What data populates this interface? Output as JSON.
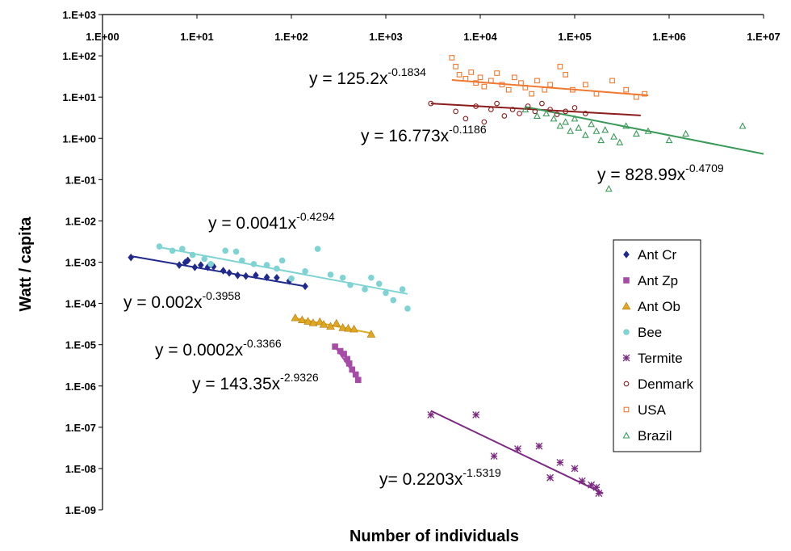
{
  "chart_data": {
    "type": "scatter",
    "title": "",
    "xlabel": "Number of individuals",
    "ylabel": "Watt / capita",
    "xscale": "log",
    "yscale": "log",
    "xlim": [
      1,
      10000000
    ],
    "ylim": [
      1e-09,
      1000
    ],
    "x_tick_labels": [
      "1.E+00",
      "1.E+01",
      "1.E+02",
      "1.E+03",
      "1.E+04",
      "1.E+05",
      "1.E+06",
      "1.E+07"
    ],
    "y_tick_labels": [
      "1.E+03",
      "1.E+02",
      "1.E+01",
      "1.E+00",
      "1.E-01",
      "1.E-02",
      "1.E-03",
      "1.E-04",
      "1.E-05",
      "1.E-06",
      "1.E-07",
      "1.E-08",
      "1.E-09"
    ],
    "x_axis_position": "top",
    "grid": false,
    "legend_position": "right",
    "series": [
      {
        "name": "Ant Cr",
        "marker": "diamond",
        "color": "#1f2a8c",
        "points": [
          [
            2,
            0.0013
          ],
          [
            6.5,
            0.00085
          ],
          [
            7.5,
            0.00098
          ],
          [
            8,
            0.0011
          ],
          [
            9.5,
            0.00075
          ],
          [
            11,
            0.00085
          ],
          [
            13,
            0.00075
          ],
          [
            15,
            0.00078
          ],
          [
            19,
            0.00062
          ],
          [
            22,
            0.00055
          ],
          [
            27,
            0.00048
          ],
          [
            33,
            0.00046
          ],
          [
            42,
            0.00048
          ],
          [
            55,
            0.00043
          ],
          [
            70,
            0.00042
          ],
          [
            95,
            0.00035
          ],
          [
            140,
            0.00026
          ]
        ],
        "fit": {
          "equation": "y = 0.002x",
          "exponent": "-0.3958",
          "x_range": [
            2,
            140
          ]
        }
      },
      {
        "name": "Ant Zp",
        "marker": "square",
        "color": "#a64ca6",
        "points": [
          [
            290,
            9e-06
          ],
          [
            330,
            7e-06
          ],
          [
            360,
            6e-06
          ],
          [
            390,
            4.5e-06
          ],
          [
            410,
            3.5e-06
          ],
          [
            440,
            2.5e-06
          ],
          [
            480,
            1.9e-06
          ],
          [
            510,
            1.4e-06
          ]
        ],
        "fit": {
          "equation": "y = 143.35x",
          "exponent": "-2.9326",
          "x_range": [
            290,
            510
          ]
        }
      },
      {
        "name": "Ant Ob",
        "marker": "triangle",
        "color": "#e0a820",
        "points": [
          [
            110,
            4.5e-05
          ],
          [
            130,
            4e-05
          ],
          [
            150,
            3.7e-05
          ],
          [
            170,
            3.4e-05
          ],
          [
            200,
            3.6e-05
          ],
          [
            220,
            3.1e-05
          ],
          [
            260,
            2.8e-05
          ],
          [
            300,
            3.3e-05
          ],
          [
            350,
            2.6e-05
          ],
          [
            400,
            2.5e-05
          ],
          [
            460,
            2.4e-05
          ],
          [
            700,
            1.8e-05
          ]
        ],
        "fit": {
          "equation": "y = 0.0002x",
          "exponent": "-0.3366",
          "x_range": [
            110,
            700
          ]
        }
      },
      {
        "name": "Bee",
        "marker": "circle",
        "color": "#7fd3d3",
        "points": [
          [
            4,
            0.0024
          ],
          [
            5.5,
            0.0019
          ],
          [
            7,
            0.0021
          ],
          [
            9,
            0.0015
          ],
          [
            12,
            0.0012
          ],
          [
            14,
            0.0009
          ],
          [
            20,
            0.0019
          ],
          [
            26,
            0.0018
          ],
          [
            30,
            0.0011
          ],
          [
            40,
            0.0009
          ],
          [
            55,
            0.00085
          ],
          [
            70,
            0.0007
          ],
          [
            80,
            0.0011
          ],
          [
            100,
            0.0004
          ],
          [
            140,
            0.0006
          ],
          [
            190,
            0.0021
          ],
          [
            260,
            0.0005
          ],
          [
            350,
            0.00042
          ],
          [
            420,
            0.00028
          ],
          [
            600,
            0.00022
          ],
          [
            700,
            0.00042
          ],
          [
            850,
            0.0003
          ],
          [
            1000,
            0.00018
          ],
          [
            1200,
            0.00012
          ],
          [
            1500,
            0.00022
          ],
          [
            1700,
            7.5e-05
          ]
        ],
        "fit": {
          "equation": "y = 0.0041x",
          "exponent": "-0.4294",
          "x_range": [
            4,
            1700
          ]
        }
      },
      {
        "name": "Termite",
        "marker": "star",
        "color": "#7a2880",
        "points": [
          [
            3000,
            2e-07
          ],
          [
            9000,
            2e-07
          ],
          [
            14000,
            2e-08
          ],
          [
            25000,
            3e-08
          ],
          [
            42000,
            3.5e-08
          ],
          [
            55000,
            6e-09
          ],
          [
            70000,
            1.4e-08
          ],
          [
            100000,
            1e-08
          ],
          [
            120000,
            5e-09
          ],
          [
            150000,
            4e-09
          ],
          [
            170000,
            3.5e-09
          ],
          [
            180000,
            2.5e-09
          ]
        ],
        "fit": {
          "equation": "y= 0.2203x",
          "exponent": "-1.5319",
          "x_range": [
            3000,
            200000
          ]
        }
      },
      {
        "name": "Denmark",
        "marker": "circle-open",
        "color": "#8b1c1c",
        "points": [
          [
            3000,
            7
          ],
          [
            5500,
            4.5
          ],
          [
            7000,
            3
          ],
          [
            9000,
            6
          ],
          [
            11000,
            2.5
          ],
          [
            13000,
            5
          ],
          [
            15000,
            7
          ],
          [
            18000,
            3.5
          ],
          [
            22000,
            5
          ],
          [
            26000,
            4
          ],
          [
            32000,
            6
          ],
          [
            38000,
            4.5
          ],
          [
            45000,
            7
          ],
          [
            55000,
            5
          ],
          [
            65000,
            3.8
          ],
          [
            80000,
            4.5
          ],
          [
            100000,
            5.5
          ],
          [
            130000,
            4
          ]
        ],
        "fit": {
          "equation": "y = 16.773x",
          "exponent": "-0.1186",
          "x_range": [
            3000,
            500000
          ]
        }
      },
      {
        "name": "USA",
        "marker": "square-open",
        "color": "#f07830",
        "points": [
          [
            5000,
            90
          ],
          [
            5500,
            55
          ],
          [
            6000,
            35
          ],
          [
            7000,
            28
          ],
          [
            8000,
            40
          ],
          [
            9000,
            22
          ],
          [
            10000,
            30
          ],
          [
            11000,
            18
          ],
          [
            13000,
            25
          ],
          [
            15000,
            38
          ],
          [
            17000,
            20
          ],
          [
            20000,
            15
          ],
          [
            23000,
            30
          ],
          [
            27000,
            22
          ],
          [
            30000,
            17
          ],
          [
            35000,
            12
          ],
          [
            40000,
            25
          ],
          [
            48000,
            15
          ],
          [
            55000,
            20
          ],
          [
            70000,
            55
          ],
          [
            80000,
            35
          ],
          [
            95000,
            15
          ],
          [
            130000,
            20
          ],
          [
            170000,
            12
          ],
          [
            250000,
            25
          ],
          [
            350000,
            15
          ],
          [
            450000,
            10
          ],
          [
            550000,
            12
          ]
        ],
        "fit": {
          "equation": "y = 125.2x",
          "exponent": "-0.1834",
          "x_range": [
            5000,
            600000
          ]
        }
      },
      {
        "name": "Brazil",
        "marker": "triangle-open",
        "color": "#3a9a58",
        "points": [
          [
            30000,
            5
          ],
          [
            40000,
            3.5
          ],
          [
            50000,
            4
          ],
          [
            60000,
            3
          ],
          [
            70000,
            2
          ],
          [
            80000,
            2.5
          ],
          [
            90000,
            1.5
          ],
          [
            100000,
            3
          ],
          [
            110000,
            1.8
          ],
          [
            130000,
            1.2
          ],
          [
            150000,
            2.2
          ],
          [
            170000,
            1.5
          ],
          [
            190000,
            0.9
          ],
          [
            210000,
            1.6
          ],
          [
            230000,
            0.06
          ],
          [
            260000,
            1.1
          ],
          [
            300000,
            0.8
          ],
          [
            350000,
            2
          ],
          [
            450000,
            1.3
          ],
          [
            600000,
            1.5
          ],
          [
            1000000,
            0.9
          ],
          [
            1500000,
            1.3
          ],
          [
            6000000,
            2
          ]
        ],
        "fit": {
          "equation": "y = 828.99x",
          "exponent": "-0.4709",
          "x_range": [
            30000,
            10000000
          ]
        }
      }
    ]
  }
}
